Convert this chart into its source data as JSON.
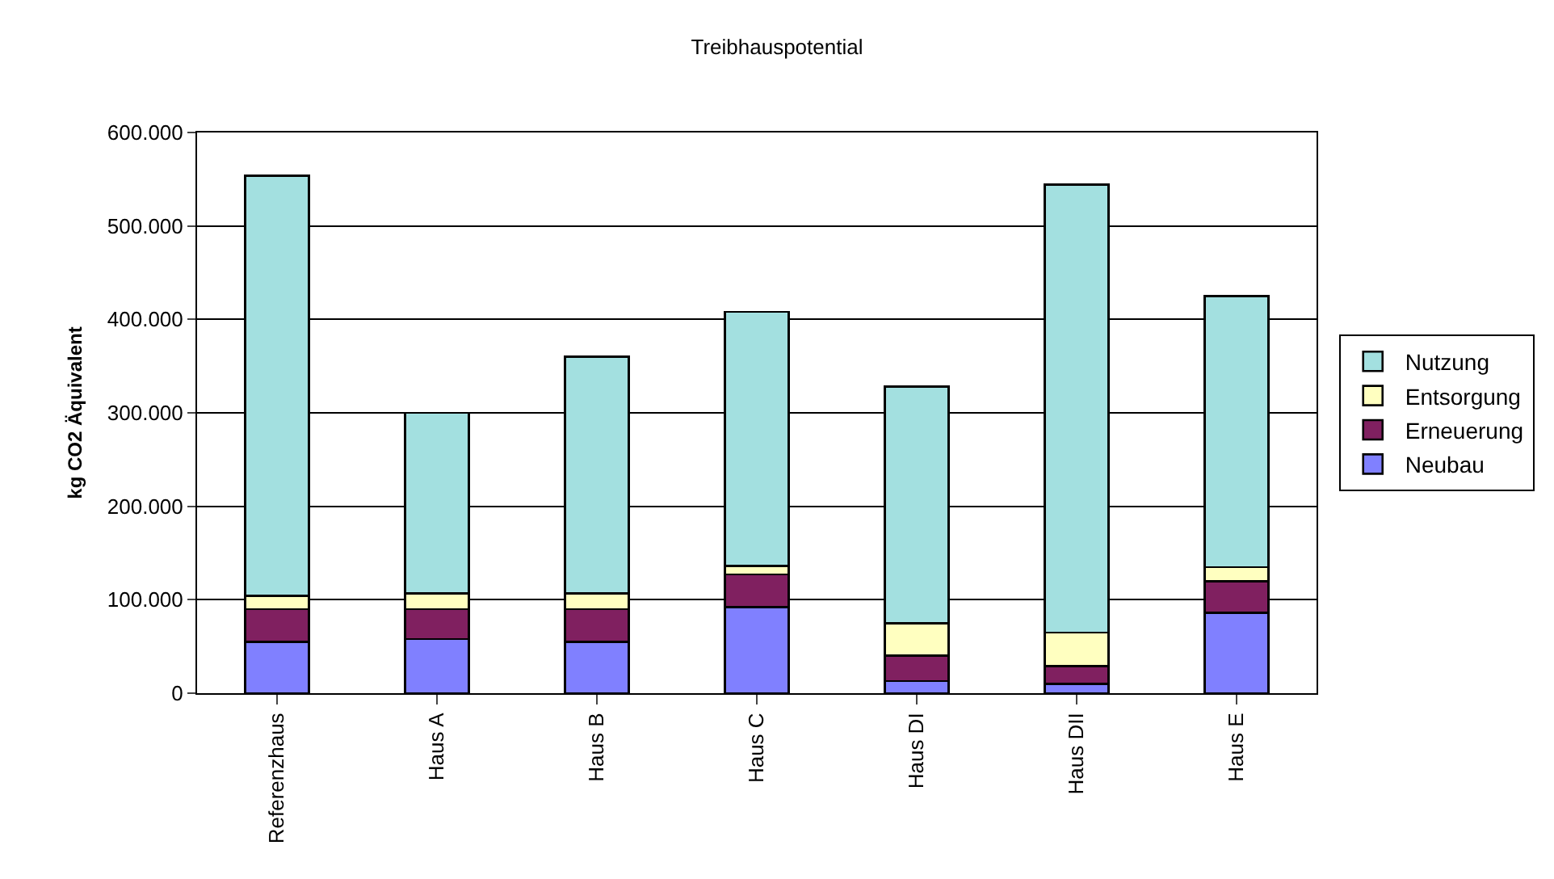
{
  "chart_data": {
    "type": "bar",
    "title": "Treibhauspotential",
    "ylabel": "kg CO2 Äquivalent",
    "categories": [
      "Referenzhaus",
      "Haus A",
      "Haus B",
      "Haus C",
      "Haus DI",
      "Haus DII",
      "Haus E"
    ],
    "stacked": true,
    "series": [
      {
        "name": "Neubau",
        "color": "#8080ff",
        "values": [
          55000,
          58000,
          55000,
          92000,
          13000,
          10000,
          86000
        ]
      },
      {
        "name": "Erneuerung",
        "color": "#802060",
        "values": [
          35000,
          32000,
          35000,
          35000,
          27000,
          19000,
          34000
        ]
      },
      {
        "name": "Entsorgung",
        "color": "#ffffc0",
        "values": [
          14000,
          17000,
          17000,
          9000,
          35000,
          36000,
          15000
        ]
      },
      {
        "name": "Nutzung",
        "color": "#a3e0e0",
        "values": [
          450000,
          193000,
          253000,
          272000,
          253000,
          479000,
          290000
        ]
      }
    ],
    "ylim": [
      0,
      600000
    ],
    "yticks": [
      {
        "value": 0,
        "label": "0"
      },
      {
        "value": 100000,
        "label": "100.000"
      },
      {
        "value": 200000,
        "label": "200.000"
      },
      {
        "value": 300000,
        "label": "300.000"
      },
      {
        "value": 400000,
        "label": "400.000"
      },
      {
        "value": 500000,
        "label": "500.000"
      },
      {
        "value": 600000,
        "label": "600.000"
      }
    ],
    "grid": "y",
    "legend": "right"
  }
}
